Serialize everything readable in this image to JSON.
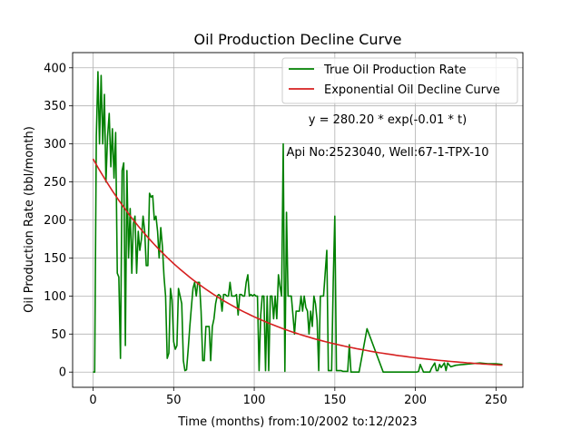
{
  "chart_data": {
    "type": "line",
    "title": "Oil Production Decline Curve",
    "xlabel": "Time (months) from:10/2002 to:12/2023",
    "ylabel": "Oil Production Rate (bbl/month)",
    "xlim": [
      -12.7,
      266.7
    ],
    "ylim": [
      -20,
      420
    ],
    "xticks": [
      0,
      50,
      100,
      150,
      200,
      250
    ],
    "yticks": [
      0,
      50,
      100,
      150,
      200,
      250,
      300,
      350,
      400
    ],
    "grid": true,
    "legend_position": "top-right",
    "annotations": [
      {
        "text": "y = 280.20 * exp(-0.01 * t)",
        "x": 182,
        "y": 325
      },
      {
        "text": "Api No:2523040, Well:67-1-TPX-10",
        "x": 182,
        "y": 283
      }
    ],
    "series": [
      {
        "name": "True Oil Production Rate",
        "color": "#008000",
        "x": [
          0,
          1,
          2,
          3,
          4,
          5,
          6,
          7,
          8,
          9,
          10,
          11,
          12,
          13,
          14,
          15,
          16,
          17,
          18,
          19,
          20,
          21,
          22,
          23,
          24,
          25,
          26,
          27,
          28,
          29,
          30,
          31,
          32,
          33,
          34,
          35,
          36,
          37,
          38,
          39,
          40,
          41,
          42,
          43,
          44,
          45,
          46,
          47,
          48,
          49,
          50,
          51,
          52,
          53,
          54,
          55,
          56,
          57,
          58,
          59,
          60,
          61,
          62,
          63,
          64,
          65,
          66,
          67,
          68,
          69,
          70,
          71,
          72,
          73,
          74,
          75,
          76,
          77,
          78,
          79,
          80,
          81,
          82,
          83,
          84,
          85,
          86,
          87,
          88,
          89,
          90,
          91,
          92,
          93,
          94,
          95,
          96,
          97,
          98,
          99,
          100,
          101,
          102,
          103,
          104,
          105,
          106,
          107,
          108,
          109,
          110,
          111,
          112,
          113,
          114,
          115,
          116,
          117,
          118,
          119,
          120,
          121,
          122,
          123,
          124,
          125,
          126,
          127,
          128,
          129,
          130,
          131,
          132,
          133,
          134,
          135,
          136,
          137,
          138,
          139,
          140,
          141,
          142,
          143,
          144,
          145,
          146,
          147,
          148,
          149,
          150,
          151,
          152,
          153,
          154,
          155,
          156,
          157,
          158,
          159,
          160,
          161,
          162,
          163,
          164,
          165,
          170,
          180,
          190,
          199,
          200,
          201,
          202,
          203,
          205,
          207,
          208,
          209,
          210,
          212,
          213,
          214,
          215,
          216,
          218,
          219,
          220,
          222,
          225,
          230,
          235,
          240,
          245,
          250,
          254
        ],
        "values": [
          0,
          0,
          310,
          395,
          300,
          390,
          300,
          365,
          250,
          310,
          340,
          270,
          320,
          255,
          315,
          130,
          125,
          18,
          265,
          275,
          35,
          265,
          150,
          215,
          130,
          195,
          205,
          130,
          185,
          160,
          175,
          205,
          185,
          140,
          140,
          235,
          230,
          232,
          200,
          205,
          185,
          150,
          190,
          165,
          125,
          100,
          18,
          25,
          110,
          95,
          40,
          30,
          35,
          110,
          100,
          90,
          15,
          2,
          3,
          30,
          60,
          85,
          110,
          118,
          100,
          118,
          118,
          80,
          15,
          15,
          60,
          60,
          60,
          15,
          60,
          70,
          90,
          100,
          102,
          100,
          80,
          102,
          102,
          100,
          100,
          118,
          100,
          100,
          100,
          102,
          75,
          102,
          102,
          100,
          100,
          118,
          128,
          100,
          102,
          100,
          102,
          100,
          100,
          2,
          75,
          100,
          100,
          2,
          100,
          2,
          100,
          100,
          70,
          100,
          70,
          128,
          112,
          100,
          300,
          1,
          210,
          100,
          100,
          100,
          75,
          50,
          80,
          80,
          80,
          100,
          80,
          100,
          85,
          80,
          50,
          80,
          60,
          100,
          90,
          68,
          2,
          100,
          100,
          100,
          130,
          160,
          2,
          2,
          2,
          120,
          205,
          2,
          2,
          2,
          2,
          1,
          1,
          1,
          1,
          36,
          0,
          0,
          0,
          0,
          0,
          0,
          57,
          0,
          0,
          0,
          0,
          0,
          1,
          10,
          0,
          0,
          0,
          0,
          5,
          12,
          2,
          2,
          10,
          6,
          12,
          2,
          12,
          7,
          9,
          10,
          11,
          12,
          11,
          11,
          10
        ]
      },
      {
        "name": "Exponential Oil Decline Curve",
        "color": "#d62020",
        "fit": {
          "a": 280.2,
          "k": 0.0135
        },
        "x_range": [
          0,
          254
        ]
      }
    ]
  }
}
